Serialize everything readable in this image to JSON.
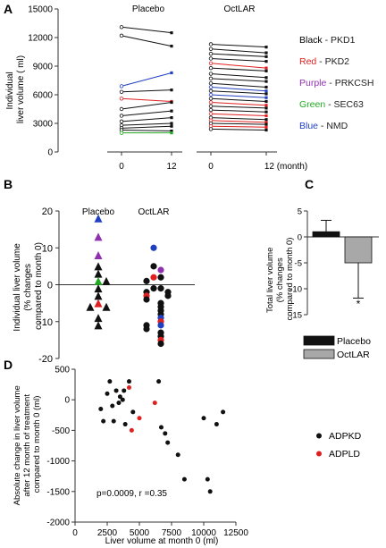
{
  "chart_data": [
    {
      "id": "A",
      "panel_label": "A",
      "type": "line",
      "ylabel": "Individual liver volume ( ml)",
      "ylim": [
        0,
        15000
      ],
      "yticks": [
        "0",
        "3000",
        "6000",
        "9000",
        "12000",
        "15000"
      ],
      "groups": [
        {
          "name": "Placebo",
          "x_ticks": [
            "0",
            "12"
          ],
          "series": [
            {
              "color": "black",
              "values": [
                13100,
                12500
              ]
            },
            {
              "color": "black",
              "values": [
                12200,
                11100
              ]
            },
            {
              "color": "blue",
              "values": [
                6900,
                8300
              ]
            },
            {
              "color": "black",
              "values": [
                6300,
                6500
              ]
            },
            {
              "color": "red",
              "values": [
                5600,
                5300
              ]
            },
            {
              "color": "black",
              "values": [
                4500,
                5200
              ]
            },
            {
              "color": "black",
              "values": [
                3800,
                4300
              ]
            },
            {
              "color": "black",
              "values": [
                3200,
                3600
              ]
            },
            {
              "color": "black",
              "values": [
                2800,
                3000
              ]
            },
            {
              "color": "black",
              "values": [
                2500,
                2700
              ]
            },
            {
              "color": "black",
              "values": [
                2300,
                2200
              ]
            },
            {
              "color": "green",
              "values": [
                2000,
                2000
              ]
            }
          ]
        },
        {
          "name": "OctLAR",
          "x_ticks": [
            "0",
            "12 (month)"
          ],
          "series": [
            {
              "color": "black",
              "values": [
                11300,
                11000
              ]
            },
            {
              "color": "black",
              "values": [
                10800,
                10400
              ]
            },
            {
              "color": "black",
              "values": [
                10300,
                10000
              ]
            },
            {
              "color": "black",
              "values": [
                9800,
                9500
              ]
            },
            {
              "color": "red",
              "values": [
                9300,
                8800
              ]
            },
            {
              "color": "black",
              "values": [
                8800,
                8500
              ]
            },
            {
              "color": "black",
              "values": [
                8200,
                7800
              ]
            },
            {
              "color": "black",
              "values": [
                7700,
                7400
              ]
            },
            {
              "color": "black",
              "values": [
                7200,
                6800
              ]
            },
            {
              "color": "blue",
              "values": [
                6800,
                6400
              ]
            },
            {
              "color": "black",
              "values": [
                6400,
                6100
              ]
            },
            {
              "color": "blue",
              "values": [
                6000,
                5700
              ]
            },
            {
              "color": "black",
              "values": [
                5600,
                5300
              ]
            },
            {
              "color": "red",
              "values": [
                5200,
                4900
              ]
            },
            {
              "color": "black",
              "values": [
                4800,
                4600
              ]
            },
            {
              "color": "black",
              "values": [
                4400,
                4200
              ]
            },
            {
              "color": "red",
              "values": [
                4000,
                3800
              ]
            },
            {
              "color": "black",
              "values": [
                3600,
                3400
              ]
            },
            {
              "color": "red",
              "values": [
                3300,
                3100
              ]
            },
            {
              "color": "black",
              "values": [
                3000,
                2900
              ]
            },
            {
              "color": "red",
              "values": [
                2700,
                2600
              ]
            },
            {
              "color": "black",
              "values": [
                2400,
                2300
              ]
            }
          ]
        }
      ],
      "legend": [
        {
          "color_word": "Black",
          "rest": " - PKD1",
          "color": "#000000"
        },
        {
          "color_word": "Red",
          "rest": " - PKD2",
          "color": "#e02020"
        },
        {
          "color_word": "Purple",
          "rest": " - PRKCSH",
          "color": "#9030b0"
        },
        {
          "color_word": "Green",
          "rest": " - SEC63",
          "color": "#22aa22"
        },
        {
          "color_word": "Blue",
          "rest": " - NMD",
          "color": "#2040c0"
        }
      ]
    },
    {
      "id": "B",
      "panel_label": "B",
      "type": "scatter",
      "ylabel": [
        "Individual liver volume",
        "(% changes",
        "compared to month 0)"
      ],
      "ylim": [
        -20,
        20
      ],
      "yticks": [
        "-20",
        "-10",
        "0",
        "10",
        "20"
      ],
      "categories": [
        "Placebo",
        "OctLAR"
      ],
      "points": {
        "Placebo": [
          {
            "y": 18,
            "color": "blue"
          },
          {
            "y": 13,
            "color": "purple"
          },
          {
            "y": 8,
            "color": "purple"
          },
          {
            "y": 5,
            "color": "black"
          },
          {
            "y": 3,
            "color": "black"
          },
          {
            "y": 1,
            "color": "green"
          },
          {
            "y": 1,
            "color": "black"
          },
          {
            "y": -1,
            "color": "black"
          },
          {
            "y": -3,
            "color": "black"
          },
          {
            "y": -5,
            "color": "red"
          },
          {
            "y": -6,
            "color": "black"
          },
          {
            "y": -6,
            "color": "black"
          },
          {
            "y": -9,
            "color": "black"
          },
          {
            "y": -11,
            "color": "black"
          }
        ],
        "OctLAR": [
          {
            "y": 10,
            "color": "blue"
          },
          {
            "y": 5,
            "color": "black"
          },
          {
            "y": 4,
            "color": "purple"
          },
          {
            "y": 2,
            "color": "red"
          },
          {
            "y": 2,
            "color": "black"
          },
          {
            "y": 1,
            "color": "black"
          },
          {
            "y": -1,
            "color": "black"
          },
          {
            "y": -1,
            "color": "black"
          },
          {
            "y": -2,
            "color": "black"
          },
          {
            "y": -2,
            "color": "black"
          },
          {
            "y": -3,
            "color": "red"
          },
          {
            "y": -3,
            "color": "black"
          },
          {
            "y": -4,
            "color": "black"
          },
          {
            "y": -5,
            "color": "black"
          },
          {
            "y": -6,
            "color": "black"
          },
          {
            "y": -7,
            "color": "black"
          },
          {
            "y": -8,
            "color": "black"
          },
          {
            "y": -9,
            "color": "blue"
          },
          {
            "y": -10,
            "color": "red"
          },
          {
            "y": -11,
            "color": "blue"
          },
          {
            "y": -11,
            "color": "black"
          },
          {
            "y": -12,
            "color": "black"
          },
          {
            "y": -13,
            "color": "black"
          },
          {
            "y": -14,
            "color": "black"
          },
          {
            "y": -15,
            "color": "red"
          },
          {
            "y": -16,
            "color": "black"
          }
        ]
      }
    },
    {
      "id": "C",
      "panel_label": "C",
      "type": "bar",
      "ylabel": [
        "Total liver volume",
        "(% changes",
        "compared to month 0)"
      ],
      "ylim": [
        -15,
        5
      ],
      "yticks": [
        "-15",
        "-10",
        "-5",
        "0",
        "5"
      ],
      "categories": [
        "Placebo",
        "OctLAR"
      ],
      "values": [
        1.0,
        -5.0
      ],
      "errors": [
        2.2,
        6.8
      ],
      "colors": [
        "#111111",
        "#a8a8a8"
      ],
      "annotation": "*"
    },
    {
      "id": "D",
      "panel_label": "D",
      "type": "scatter",
      "xlabel": "Liver volume at month 0  (ml)",
      "ylabel": [
        "Absolute change in liver volume",
        "after 12 month of treatment",
        "compared to month 0 (ml)"
      ],
      "xlim": [
        0,
        12500
      ],
      "ylim": [
        -2000,
        500
      ],
      "xticks": [
        "0",
        "2500",
        "5000",
        "7500",
        "10000",
        "12500"
      ],
      "yticks": [
        "-2000",
        "-1500",
        "-1000",
        "-500",
        "0",
        "500"
      ],
      "annotation": "p=0.0009, r =0.35",
      "series": [
        {
          "name": "ADPKD",
          "color": "#111111",
          "points": [
            [
              2000,
              -150
            ],
            [
              2200,
              -350
            ],
            [
              2500,
              100
            ],
            [
              2700,
              300
            ],
            [
              2900,
              -100
            ],
            [
              3000,
              -350
            ],
            [
              3200,
              150
            ],
            [
              3400,
              -50
            ],
            [
              3500,
              50
            ],
            [
              3700,
              0
            ],
            [
              3800,
              150
            ],
            [
              3900,
              -400
            ],
            [
              4200,
              300
            ],
            [
              4500,
              -200
            ],
            [
              6500,
              300
            ],
            [
              6700,
              -450
            ],
            [
              7000,
              -550
            ],
            [
              7200,
              -700
            ],
            [
              8000,
              -900
            ],
            [
              8500,
              -1300
            ],
            [
              10000,
              -300
            ],
            [
              10300,
              -1300
            ],
            [
              10500,
              -1500
            ],
            [
              11000,
              -400
            ],
            [
              11500,
              -200
            ]
          ]
        },
        {
          "name": "ADPLD",
          "color": "#e02020",
          "points": [
            [
              4200,
              200
            ],
            [
              4400,
              -500
            ],
            [
              5000,
              -300
            ],
            [
              6200,
              -50
            ]
          ]
        }
      ]
    }
  ]
}
